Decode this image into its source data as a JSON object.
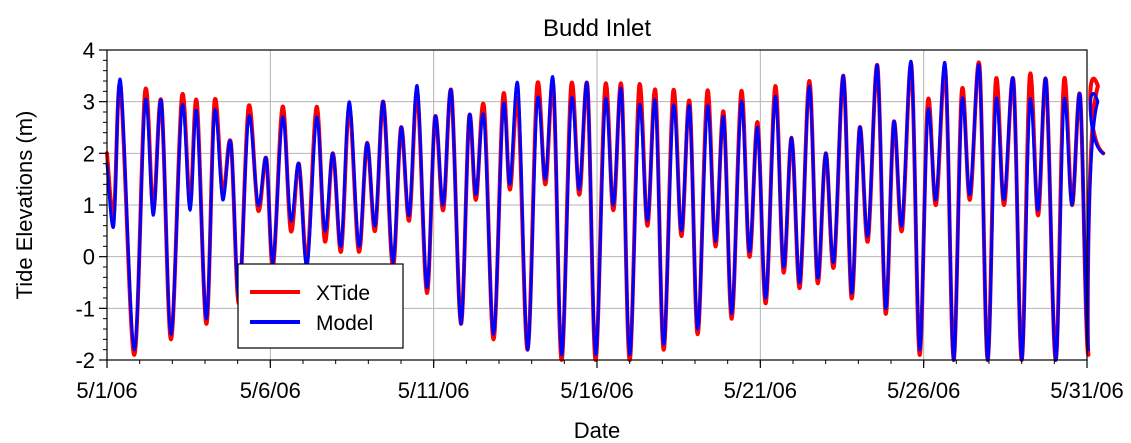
{
  "chart_data": {
    "type": "line",
    "title": "Budd Inlet",
    "xlabel": "Date",
    "ylabel": "Tide Elevations (m)",
    "x_unit": "date",
    "xlim": [
      "2006-05-01",
      "2006-05-31"
    ],
    "ylim": [
      -2,
      4
    ],
    "x_ticks": [
      "2006-05-01",
      "2006-05-06",
      "2006-05-11",
      "2006-05-16",
      "2006-05-21",
      "2006-05-26",
      "2006-05-31"
    ],
    "x_tick_labels": [
      "5/1/06",
      "5/6/06",
      "5/11/06",
      "5/16/06",
      "5/21/06",
      "5/26/06",
      "5/31/06"
    ],
    "y_ticks": [
      -2,
      -1,
      0,
      1,
      2,
      3,
      4
    ],
    "y_tick_labels": [
      "-2",
      "-1",
      "0",
      "1",
      "2",
      "3",
      "4"
    ],
    "grid": true,
    "legend_position": "bottom-left",
    "legend": [
      "XTide",
      "Model"
    ],
    "colors": {
      "XTide": "#ff0000",
      "Model": "#0000ff"
    },
    "series": [
      {
        "name": "XTide",
        "points": [
          [
            "2006-05-01 00:00",
            2.0
          ],
          [
            "2006-05-01 05:00",
            0.8
          ],
          [
            "2006-05-01 10:00",
            3.3
          ],
          [
            "2006-05-01 20:00",
            -1.9
          ],
          [
            "2006-05-02 04:00",
            3.2
          ],
          [
            "2006-05-02 10:00",
            0.9
          ],
          [
            "2006-05-02 16:00",
            3.0
          ],
          [
            "2006-05-02 23:00",
            -1.6
          ],
          [
            "2006-05-03 07:00",
            3.1
          ],
          [
            "2006-05-03 13:00",
            1.0
          ],
          [
            "2006-05-03 18:00",
            3.0
          ],
          [
            "2006-05-04 01:00",
            -1.3
          ],
          [
            "2006-05-04 07:00",
            3.0
          ],
          [
            "2006-05-04 13:00",
            1.2
          ],
          [
            "2006-05-04 19:00",
            2.2
          ],
          [
            "2006-05-05 01:00",
            -0.9
          ],
          [
            "2006-05-05 08:00",
            2.9
          ],
          [
            "2006-05-05 15:00",
            0.9
          ],
          [
            "2006-05-05 21:00",
            1.9
          ],
          [
            "2006-05-06 02:00",
            -0.2
          ],
          [
            "2006-05-06 09:00",
            2.9
          ],
          [
            "2006-05-06 15:00",
            0.5
          ],
          [
            "2006-05-06 21:00",
            1.8
          ],
          [
            "2006-05-07 03:00",
            -0.1
          ],
          [
            "2006-05-07 10:00",
            2.9
          ],
          [
            "2006-05-07 16:00",
            0.3
          ],
          [
            "2006-05-07 22:00",
            2.0
          ],
          [
            "2006-05-08 04:00",
            0.1
          ],
          [
            "2006-05-08 10:00",
            2.9
          ],
          [
            "2006-05-08 17:00",
            0.1
          ],
          [
            "2006-05-08 23:00",
            2.2
          ],
          [
            "2006-05-09 05:00",
            0.5
          ],
          [
            "2006-05-09 11:00",
            3.0
          ],
          [
            "2006-05-09 18:00",
            -0.2
          ],
          [
            "2006-05-10 00:00",
            2.5
          ],
          [
            "2006-05-10 06:00",
            0.7
          ],
          [
            "2006-05-10 12:00",
            3.2
          ],
          [
            "2006-05-10 19:00",
            -0.7
          ],
          [
            "2006-05-11 01:00",
            2.7
          ],
          [
            "2006-05-11 07:00",
            0.9
          ],
          [
            "2006-05-11 13:00",
            3.2
          ],
          [
            "2006-05-11 20:00",
            -1.3
          ],
          [
            "2006-05-12 02:00",
            2.7
          ],
          [
            "2006-05-12 07:00",
            1.1
          ],
          [
            "2006-05-12 13:00",
            2.9
          ],
          [
            "2006-05-12 20:00",
            -1.6
          ],
          [
            "2006-05-13 03:00",
            3.1
          ],
          [
            "2006-05-13 08:00",
            1.3
          ],
          [
            "2006-05-13 14:00",
            3.0
          ],
          [
            "2006-05-13 21:00",
            -1.8
          ],
          [
            "2006-05-14 04:00",
            3.3
          ],
          [
            "2006-05-14 10:00",
            1.4
          ],
          [
            "2006-05-14 16:00",
            3.3
          ],
          [
            "2006-05-14 22:00",
            -2.0
          ],
          [
            "2006-05-15 05:00",
            3.3
          ],
          [
            "2006-05-15 11:00",
            1.2
          ],
          [
            "2006-05-15 17:00",
            3.3
          ],
          [
            "2006-05-15 23:00",
            -2.0
          ],
          [
            "2006-05-16 06:00",
            3.3
          ],
          [
            "2006-05-16 12:00",
            0.9
          ],
          [
            "2006-05-16 18:00",
            3.3
          ],
          [
            "2006-05-17 00:00",
            -2.0
          ],
          [
            "2006-05-17 07:00",
            3.3
          ],
          [
            "2006-05-17 13:00",
            0.6
          ],
          [
            "2006-05-17 19:00",
            3.2
          ],
          [
            "2006-05-18 01:00",
            -1.8
          ],
          [
            "2006-05-18 08:00",
            3.2
          ],
          [
            "2006-05-18 14:00",
            0.4
          ],
          [
            "2006-05-18 20:00",
            3.0
          ],
          [
            "2006-05-19 02:00",
            -1.5
          ],
          [
            "2006-05-19 09:00",
            3.2
          ],
          [
            "2006-05-19 15:00",
            0.2
          ],
          [
            "2006-05-19 21:00",
            2.8
          ],
          [
            "2006-05-20 03:00",
            -1.2
          ],
          [
            "2006-05-20 10:00",
            3.2
          ],
          [
            "2006-05-20 16:00",
            0.0
          ],
          [
            "2006-05-20 22:00",
            2.6
          ],
          [
            "2006-05-21 04:00",
            -0.9
          ],
          [
            "2006-05-21 11:00",
            3.3
          ],
          [
            "2006-05-21 17:00",
            -0.3
          ],
          [
            "2006-05-21 23:00",
            2.3
          ],
          [
            "2006-05-22 05:00",
            -0.6
          ],
          [
            "2006-05-22 12:00",
            3.4
          ],
          [
            "2006-05-22 18:00",
            -0.5
          ],
          [
            "2006-05-23 00:00",
            2.0
          ],
          [
            "2006-05-23 06:00",
            -0.2
          ],
          [
            "2006-05-23 13:00",
            3.5
          ],
          [
            "2006-05-23 19:00",
            -0.8
          ],
          [
            "2006-05-24 01:00",
            2.5
          ],
          [
            "2006-05-24 07:00",
            0.3
          ],
          [
            "2006-05-24 14:00",
            3.7
          ],
          [
            "2006-05-24 20:00",
            -1.1
          ],
          [
            "2006-05-25 02:00",
            2.6
          ],
          [
            "2006-05-25 08:00",
            0.5
          ],
          [
            "2006-05-25 15:00",
            3.7
          ],
          [
            "2006-05-25 21:00",
            -1.9
          ],
          [
            "2006-05-26 03:00",
            3.0
          ],
          [
            "2006-05-26 09:00",
            1.0
          ],
          [
            "2006-05-26 16:00",
            3.6
          ],
          [
            "2006-05-26 22:00",
            -2.0
          ],
          [
            "2006-05-27 04:00",
            3.2
          ],
          [
            "2006-05-27 10:00",
            1.1
          ],
          [
            "2006-05-27 17:00",
            3.7
          ],
          [
            "2006-05-27 23:00",
            -2.0
          ],
          [
            "2006-05-28 05:00",
            3.4
          ],
          [
            "2006-05-28 11:00",
            1.0
          ],
          [
            "2006-05-28 18:00",
            3.4
          ],
          [
            "2006-05-29 00:00",
            -2.0
          ],
          [
            "2006-05-29 06:00",
            3.5
          ],
          [
            "2006-05-29 12:00",
            0.8
          ],
          [
            "2006-05-29 18:00",
            3.4
          ],
          [
            "2006-05-30 01:00",
            -2.0
          ],
          [
            "2006-05-30 07:00",
            3.4
          ],
          [
            "2006-05-30 13:00",
            1.0
          ],
          [
            "2006-05-30 19:00",
            3.1
          ],
          [
            "2006-05-31 01:00",
            -1.9
          ],
          [
            "2006-05-31 08:00",
            3.3
          ],
          [
            "2006-05-31 12:00",
            2.0
          ]
        ]
      },
      {
        "name": "Model",
        "points": [
          [
            "2006-05-01 00:00",
            1.8
          ],
          [
            "2006-05-01 05:00",
            0.6
          ],
          [
            "2006-05-01 10:00",
            3.4
          ],
          [
            "2006-05-01 20:00",
            -1.8
          ],
          [
            "2006-05-02 04:00",
            3.0
          ],
          [
            "2006-05-02 10:00",
            0.8
          ],
          [
            "2006-05-02 16:00",
            3.0
          ],
          [
            "2006-05-02 23:00",
            -1.5
          ],
          [
            "2006-05-03 07:00",
            2.9
          ],
          [
            "2006-05-03 13:00",
            0.9
          ],
          [
            "2006-05-03 18:00",
            2.8
          ],
          [
            "2006-05-04 01:00",
            -1.2
          ],
          [
            "2006-05-04 07:00",
            2.8
          ],
          [
            "2006-05-04 13:00",
            1.1
          ],
          [
            "2006-05-04 19:00",
            2.2
          ],
          [
            "2006-05-05 01:00",
            -0.8
          ],
          [
            "2006-05-05 08:00",
            2.7
          ],
          [
            "2006-05-05 15:00",
            1.0
          ],
          [
            "2006-05-05 21:00",
            1.9
          ],
          [
            "2006-05-06 02:00",
            -0.1
          ],
          [
            "2006-05-06 09:00",
            2.7
          ],
          [
            "2006-05-06 15:00",
            0.7
          ],
          [
            "2006-05-06 21:00",
            1.8
          ],
          [
            "2006-05-07 03:00",
            -0.2
          ],
          [
            "2006-05-07 10:00",
            2.7
          ],
          [
            "2006-05-07 16:00",
            0.5
          ],
          [
            "2006-05-07 22:00",
            2.0
          ],
          [
            "2006-05-08 04:00",
            0.2
          ],
          [
            "2006-05-08 10:00",
            3.0
          ],
          [
            "2006-05-08 17:00",
            0.2
          ],
          [
            "2006-05-08 23:00",
            2.2
          ],
          [
            "2006-05-09 05:00",
            0.6
          ],
          [
            "2006-05-09 11:00",
            3.0
          ],
          [
            "2006-05-09 18:00",
            -0.1
          ],
          [
            "2006-05-10 00:00",
            2.5
          ],
          [
            "2006-05-10 06:00",
            0.8
          ],
          [
            "2006-05-10 12:00",
            3.3
          ],
          [
            "2006-05-10 19:00",
            -0.6
          ],
          [
            "2006-05-11 01:00",
            2.7
          ],
          [
            "2006-05-11 07:00",
            1.0
          ],
          [
            "2006-05-11 13:00",
            3.2
          ],
          [
            "2006-05-11 20:00",
            -1.3
          ],
          [
            "2006-05-12 02:00",
            2.7
          ],
          [
            "2006-05-12 07:00",
            1.2
          ],
          [
            "2006-05-12 13:00",
            2.7
          ],
          [
            "2006-05-12 20:00",
            -1.5
          ],
          [
            "2006-05-13 03:00",
            2.9
          ],
          [
            "2006-05-13 08:00",
            1.4
          ],
          [
            "2006-05-13 14:00",
            3.3
          ],
          [
            "2006-05-13 21:00",
            -1.8
          ],
          [
            "2006-05-14 04:00",
            3.0
          ],
          [
            "2006-05-14 10:00",
            1.5
          ],
          [
            "2006-05-14 16:00",
            3.4
          ],
          [
            "2006-05-14 22:00",
            -1.9
          ],
          [
            "2006-05-15 05:00",
            3.0
          ],
          [
            "2006-05-15 11:00",
            1.3
          ],
          [
            "2006-05-15 17:00",
            3.3
          ],
          [
            "2006-05-15 23:00",
            -1.9
          ],
          [
            "2006-05-16 06:00",
            3.0
          ],
          [
            "2006-05-16 12:00",
            1.0
          ],
          [
            "2006-05-16 18:00",
            3.2
          ],
          [
            "2006-05-17 00:00",
            -1.9
          ],
          [
            "2006-05-17 07:00",
            2.9
          ],
          [
            "2006-05-17 13:00",
            0.7
          ],
          [
            "2006-05-17 19:00",
            3.0
          ],
          [
            "2006-05-18 01:00",
            -1.7
          ],
          [
            "2006-05-18 08:00",
            2.9
          ],
          [
            "2006-05-18 14:00",
            0.5
          ],
          [
            "2006-05-18 20:00",
            2.9
          ],
          [
            "2006-05-19 02:00",
            -1.4
          ],
          [
            "2006-05-19 09:00",
            2.9
          ],
          [
            "2006-05-19 15:00",
            0.3
          ],
          [
            "2006-05-19 21:00",
            2.7
          ],
          [
            "2006-05-20 03:00",
            -1.1
          ],
          [
            "2006-05-20 10:00",
            3.0
          ],
          [
            "2006-05-20 16:00",
            0.1
          ],
          [
            "2006-05-20 22:00",
            2.5
          ],
          [
            "2006-05-21 04:00",
            -0.8
          ],
          [
            "2006-05-21 11:00",
            3.1
          ],
          [
            "2006-05-21 17:00",
            -0.2
          ],
          [
            "2006-05-21 23:00",
            2.3
          ],
          [
            "2006-05-22 05:00",
            -0.5
          ],
          [
            "2006-05-22 12:00",
            3.3
          ],
          [
            "2006-05-22 18:00",
            -0.4
          ],
          [
            "2006-05-23 00:00",
            2.0
          ],
          [
            "2006-05-23 06:00",
            -0.1
          ],
          [
            "2006-05-23 13:00",
            3.5
          ],
          [
            "2006-05-23 19:00",
            -0.7
          ],
          [
            "2006-05-24 01:00",
            2.5
          ],
          [
            "2006-05-24 07:00",
            0.4
          ],
          [
            "2006-05-24 14:00",
            3.7
          ],
          [
            "2006-05-24 20:00",
            -1.0
          ],
          [
            "2006-05-25 02:00",
            2.6
          ],
          [
            "2006-05-25 08:00",
            0.6
          ],
          [
            "2006-05-25 15:00",
            3.75
          ],
          [
            "2006-05-25 21:00",
            -1.8
          ],
          [
            "2006-05-26 03:00",
            2.8
          ],
          [
            "2006-05-26 09:00",
            1.1
          ],
          [
            "2006-05-26 16:00",
            3.7
          ],
          [
            "2006-05-26 22:00",
            -2.0
          ],
          [
            "2006-05-27 04:00",
            3.0
          ],
          [
            "2006-05-27 10:00",
            1.2
          ],
          [
            "2006-05-27 17:00",
            3.65
          ],
          [
            "2006-05-27 23:00",
            -2.0
          ],
          [
            "2006-05-28 05:00",
            3.0
          ],
          [
            "2006-05-28 11:00",
            1.1
          ],
          [
            "2006-05-28 18:00",
            3.4
          ],
          [
            "2006-05-29 00:00",
            -2.0
          ],
          [
            "2006-05-29 06:00",
            3.0
          ],
          [
            "2006-05-29 12:00",
            0.9
          ],
          [
            "2006-05-29 18:00",
            3.4
          ],
          [
            "2006-05-30 01:00",
            -2.0
          ],
          [
            "2006-05-30 07:00",
            3.0
          ],
          [
            "2006-05-30 13:00",
            1.0
          ],
          [
            "2006-05-30 19:00",
            3.1
          ],
          [
            "2006-05-31 01:00",
            -1.8
          ],
          [
            "2006-05-31 08:00",
            3.0
          ],
          [
            "2006-05-31 12:00",
            2.0
          ]
        ]
      }
    ]
  }
}
